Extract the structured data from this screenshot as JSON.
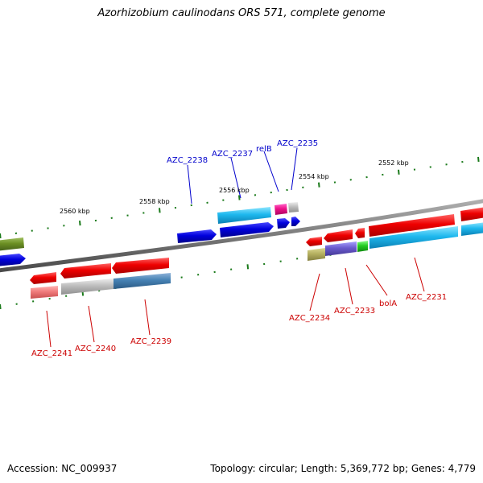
{
  "title": "Azorhizobium caulinodans ORS 571, complete genome",
  "footer": {
    "accession": "Accession: NC_009937",
    "summary": "Topology: circular; Length: 5,369,772 bp; Genes: 4,779"
  },
  "scale_ticks": [
    "2552 kbp",
    "2554 kbp",
    "2556 kbp",
    "2558 kbp",
    "2560 kbp"
  ],
  "gene_labels_top": [
    "AZC_2238",
    "AZC_2237",
    "relB",
    "AZC_2235"
  ],
  "gene_labels_bottom": [
    "AZC_2241",
    "AZC_2240",
    "AZC_2239",
    "AZC_2234",
    "AZC_2233",
    "bolA",
    "AZC_2231"
  ],
  "colors": {
    "forward_label": "#0000cc",
    "reverse_label": "#cc0000",
    "backbone": "#808080",
    "tick": "#1a7a1a"
  }
}
